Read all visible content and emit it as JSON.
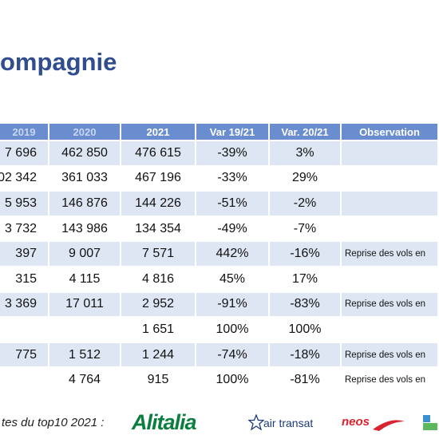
{
  "title": "ompagnie",
  "table": {
    "header": [
      "2019",
      "2020",
      "2021",
      "Var 19/21",
      "Var. 20/21",
      "Observation"
    ],
    "rows": [
      [
        "7 696",
        "462 850",
        "476 615",
        "-39%",
        "3%",
        null
      ],
      [
        "02 342",
        "361 033",
        "467 196",
        "-33%",
        "29%",
        null
      ],
      [
        "5 953",
        "146 876",
        "144 226",
        "-51%",
        "-2%",
        null
      ],
      [
        "3 732",
        "143 986",
        "134 354",
        "-49%",
        "-7%",
        null
      ],
      [
        "397",
        "9 007",
        "7 571",
        "442%",
        "-16%",
        "Reprise des vols en"
      ],
      [
        "315",
        "4 115",
        "4 816",
        "45%",
        "17%",
        null
      ],
      [
        "3 369",
        "17 011",
        "2 952",
        "-91%",
        "-83%",
        "Reprise des vols en"
      ],
      [
        null,
        null,
        "1 651",
        "100%",
        "100%",
        null
      ],
      [
        "775",
        "1 512",
        "1 244",
        "-74%",
        "-18%",
        "Reprise des vols en"
      ],
      [
        null,
        "4 764",
        "915",
        "100%",
        "-81%",
        "Reprise des vols en"
      ]
    ]
  },
  "footer": {
    "caption": "tes du top10 2021 :",
    "logos": [
      "Alitalia",
      "air transat",
      "neos"
    ]
  }
}
